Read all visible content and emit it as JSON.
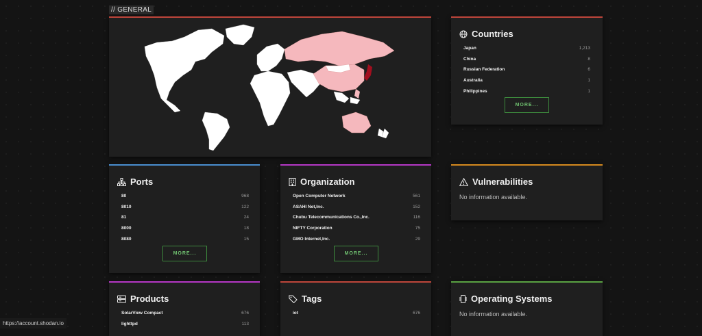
{
  "section_label": "// GENERAL",
  "colors": {
    "map_bg": "#1f1f1f",
    "land": "#ffffff",
    "highlight_light": "#f5b8bd",
    "highlight_dark": "#a10f1f"
  },
  "countries": {
    "title": "Countries",
    "items": [
      {
        "label": "Japan",
        "value": "1,213"
      },
      {
        "label": "China",
        "value": "8"
      },
      {
        "label": "Russian Federation",
        "value": "6"
      },
      {
        "label": "Australia",
        "value": "1"
      },
      {
        "label": "Philippines",
        "value": "1"
      }
    ],
    "more": "MORE..."
  },
  "ports": {
    "title": "Ports",
    "items": [
      {
        "label": "80",
        "value": "968"
      },
      {
        "label": "8010",
        "value": "122"
      },
      {
        "label": "81",
        "value": "24"
      },
      {
        "label": "8000",
        "value": "18"
      },
      {
        "label": "8080",
        "value": "15"
      }
    ],
    "more": "MORE..."
  },
  "organization": {
    "title": "Organization",
    "items": [
      {
        "label": "Open Computer Network",
        "value": "561"
      },
      {
        "label": "ASAHI Net,Inc.",
        "value": "152"
      },
      {
        "label": "Chubu Telecommunications Co.,Inc.",
        "value": "116"
      },
      {
        "label": "NIFTY Corporation",
        "value": "75"
      },
      {
        "label": "GMO Internet,Inc.",
        "value": "29"
      }
    ],
    "more": "MORE..."
  },
  "vulnerabilities": {
    "title": "Vulnerabilities",
    "text": "No information available."
  },
  "products": {
    "title": "Products",
    "items": [
      {
        "label": "SolarView Compact",
        "value": "676"
      },
      {
        "label": "lighttpd",
        "value": "113"
      }
    ]
  },
  "tags": {
    "title": "Tags",
    "items": [
      {
        "label": "iot",
        "value": "676"
      }
    ]
  },
  "os": {
    "title": "Operating Systems",
    "text": "No information available."
  },
  "status_bar": "https://account.shodan.io"
}
